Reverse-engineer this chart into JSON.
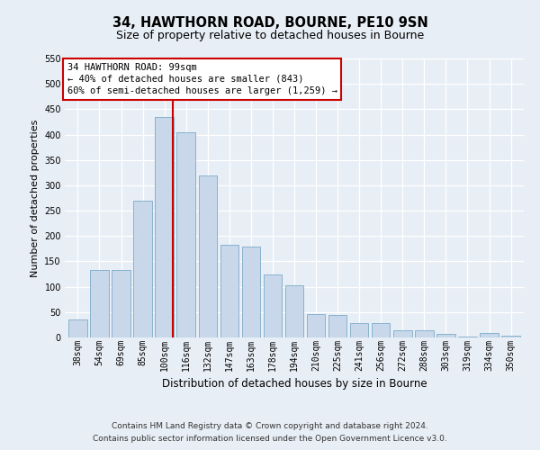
{
  "title": "34, HAWTHORN ROAD, BOURNE, PE10 9SN",
  "subtitle": "Size of property relative to detached houses in Bourne",
  "xlabel": "Distribution of detached houses by size in Bourne",
  "ylabel": "Number of detached properties",
  "categories": [
    "38sqm",
    "54sqm",
    "69sqm",
    "85sqm",
    "100sqm",
    "116sqm",
    "132sqm",
    "147sqm",
    "163sqm",
    "178sqm",
    "194sqm",
    "210sqm",
    "225sqm",
    "241sqm",
    "256sqm",
    "272sqm",
    "288sqm",
    "303sqm",
    "319sqm",
    "334sqm",
    "350sqm"
  ],
  "values": [
    35,
    133,
    133,
    270,
    435,
    405,
    320,
    183,
    180,
    125,
    103,
    46,
    44,
    28,
    28,
    15,
    15,
    7,
    2,
    8,
    4
  ],
  "bar_color": "#c8d8ea",
  "bar_edge_color": "#7aaac8",
  "vline_color": "#cc0000",
  "ylim": [
    0,
    550
  ],
  "yticks": [
    0,
    50,
    100,
    150,
    200,
    250,
    300,
    350,
    400,
    450,
    500,
    550
  ],
  "annotation_text": "34 HAWTHORN ROAD: 99sqm\n← 40% of detached houses are smaller (843)\n60% of semi-detached houses are larger (1,259) →",
  "footer_line1": "Contains HM Land Registry data © Crown copyright and database right 2024.",
  "footer_line2": "Contains public sector information licensed under the Open Government Licence v3.0.",
  "background_color": "#e8eef5",
  "grid_color": "#ffffff",
  "property_bin_index": 4,
  "bar_width": 0.85
}
